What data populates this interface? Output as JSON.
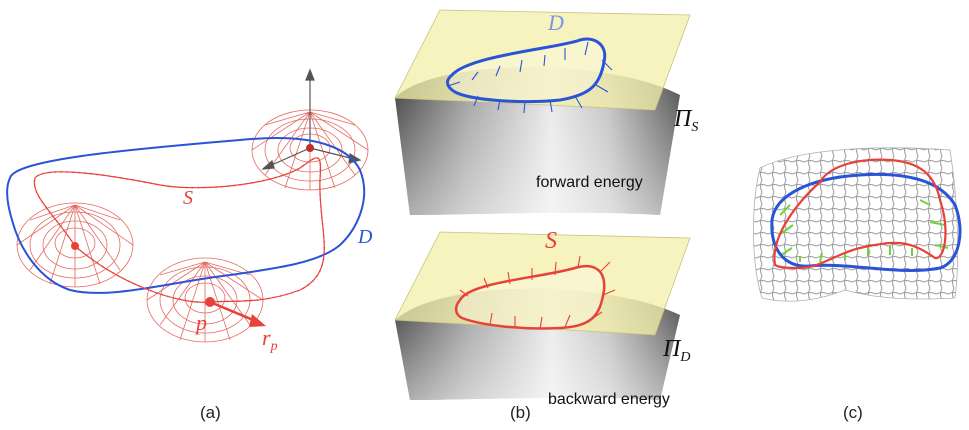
{
  "panels": {
    "a": {
      "caption": "(a)",
      "label_s": "S",
      "label_d": "D",
      "label_p": "p",
      "label_r": "r",
      "label_r_sub": "p"
    },
    "b": {
      "caption": "(b)",
      "top": {
        "label_curve": "D",
        "label_plane": "Π",
        "label_plane_sub": "S",
        "energy": "forward energy"
      },
      "bottom": {
        "label_curve": "S",
        "label_plane": "Π",
        "label_plane_sub": "D",
        "energy": "backward energy"
      }
    },
    "c": {
      "caption": "(c)"
    }
  },
  "colors": {
    "red": "#e8413a",
    "blue": "#2a54d8",
    "green": "#6ed33a",
    "plane": "#f3efa8",
    "grey": "#8a8a8a"
  }
}
